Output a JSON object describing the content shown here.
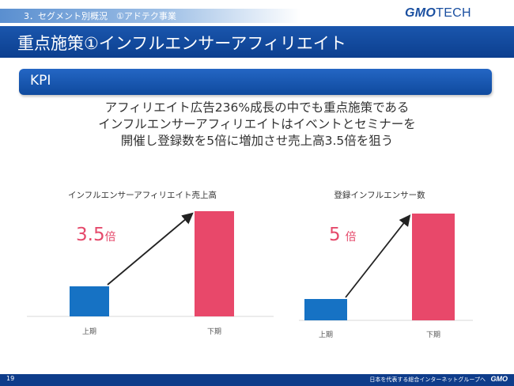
{
  "header": {
    "section": "3．セグメント別概況　①アドテク事業",
    "logo_gmo": "GMO",
    "logo_tech": "TECH"
  },
  "title": "重点施策①インフルエンサーアフィリエイト",
  "kpi_label": "KPI",
  "summary": [
    "アフィリエイト広告236%成長の中でも重点施策である",
    "インフルエンサーアフィリエイトはイベントとセミナーを",
    "開催し登録数を5倍に増加させ売上高3.5倍を狙う"
  ],
  "chart_data": [
    {
      "type": "bar",
      "title": "インフルエンサーアフィリエイト売上高",
      "categories": [
        "上期",
        "下期"
      ],
      "values": [
        1,
        3.5
      ],
      "colors": [
        "#1672c4",
        "#e8486a"
      ],
      "annotation": {
        "value": "3.5",
        "suffix": "倍"
      }
    },
    {
      "type": "bar",
      "title": "登録インフルエンサー数",
      "categories": [
        "上期",
        "下期"
      ],
      "values": [
        1,
        5
      ],
      "colors": [
        "#1672c4",
        "#e8486a"
      ],
      "annotation": {
        "value": "5",
        "suffix": "倍"
      }
    }
  ],
  "footer": {
    "page": "19",
    "tagline": "日本を代表する総合インターネットグループへ",
    "logo": "GMO"
  }
}
